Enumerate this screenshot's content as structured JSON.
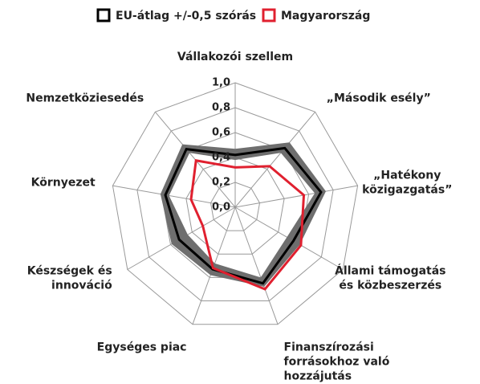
{
  "chart_data": {
    "type": "radar",
    "categories": [
      "Vállakozói szellem",
      "„Második esély”",
      "„Hatékony\nközigazgatás”",
      "Állami támogatás\nés közbeszerzés",
      "Finanszírozási\nforrásokhoz való\nhozzájutás",
      "Egységes piac",
      "Készségek és\ninnováció",
      "Környezet",
      "Nemzetköziesedés"
    ],
    "series": [
      {
        "name": "EU-átlag +/-0,5 szórás",
        "color": "#000000",
        "band_color": "#6e6e6e",
        "values": [
          0.42,
          0.62,
          0.7,
          0.54,
          0.65,
          0.53,
          0.52,
          0.57,
          0.61
        ],
        "band_low": [
          0.38,
          0.57,
          0.65,
          0.48,
          0.6,
          0.48,
          0.44,
          0.54,
          0.57
        ],
        "band_high": [
          0.47,
          0.68,
          0.74,
          0.6,
          0.68,
          0.58,
          0.59,
          0.61,
          0.66
        ]
      },
      {
        "name": "Magyarország",
        "color": "#e0202f",
        "values": [
          0.32,
          0.43,
          0.56,
          0.61,
          0.7,
          0.52,
          0.3,
          0.36,
          0.49
        ]
      }
    ],
    "rlim": [
      0,
      1
    ],
    "rticks": [
      {
        "value": 0,
        "label": "0,0"
      },
      {
        "value": 0.2,
        "label": "0,2"
      },
      {
        "value": 0.4,
        "label": "0,4"
      },
      {
        "value": 0.6,
        "label": "0,6"
      },
      {
        "value": 0.8,
        "label": "0,8"
      },
      {
        "value": 1,
        "label": "1,0"
      }
    ]
  }
}
